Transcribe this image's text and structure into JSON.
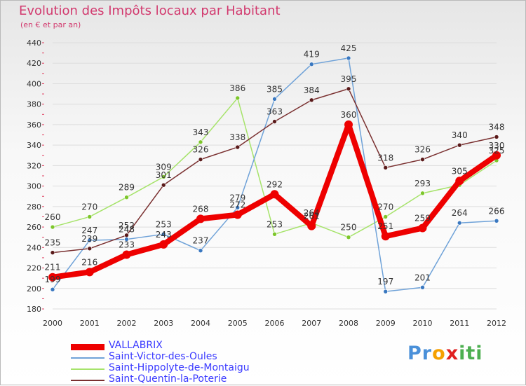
{
  "header": {
    "title": "Evolution des Impôts locaux par Habitant",
    "subtitle": "(en € et par an)"
  },
  "brand": {
    "letters": [
      "P",
      "r",
      "o",
      "x",
      "i",
      "t",
      "i"
    ]
  },
  "colors": {
    "title": "#d2396e",
    "legend_text": "#3a3aff",
    "grid": "#dddddd",
    "brand": [
      "#4a90d9",
      "#4a90d9",
      "#f5a000",
      "#e02020",
      "#4caf50",
      "#4caf50",
      "#4caf50"
    ]
  },
  "chart_data": {
    "type": "line",
    "title": "Evolution des Impôts locaux par Habitant",
    "subtitle": "(en € et par an)",
    "xlabel": "",
    "ylabel": "",
    "x": [
      2000,
      2001,
      2002,
      2003,
      2004,
      2005,
      2006,
      2007,
      2008,
      2009,
      2010,
      2011,
      2012
    ],
    "ylim": [
      180,
      440
    ],
    "yticks": [
      180,
      200,
      220,
      240,
      260,
      280,
      300,
      320,
      340,
      360,
      380,
      400,
      420,
      440
    ],
    "grid": true,
    "legend_position": "bottom-left",
    "series": [
      {
        "name": "Saint-Hippolyte-de-Montaigu",
        "color": "#a6e36a",
        "marker": "#7dc62b",
        "emphasis": false,
        "values": [
          260,
          270,
          289,
          309,
          343,
          386,
          253,
          264,
          250,
          270,
          293,
          301,
          325
        ],
        "labels": [
          "260",
          "270",
          "289",
          "309",
          "343",
          "386",
          "253",
          "264",
          "250",
          "270",
          "293",
          "",
          "325"
        ]
      },
      {
        "name": "Saint-Victor-des-Oules",
        "color": "#6fa2d8",
        "marker": "#3a78c0",
        "emphasis": false,
        "values": [
          199,
          247,
          248,
          253,
          237,
          279,
          385,
          419,
          425,
          197,
          201,
          264,
          266
        ],
        "labels": [
          "199",
          "247",
          "248",
          "253",
          "237",
          "279",
          "385",
          "419",
          "425",
          "197",
          "201",
          "264",
          "266"
        ]
      },
      {
        "name": "Saint-Quentin-la-Poterie",
        "color": "#7a3030",
        "marker": "#5a1a1a",
        "emphasis": false,
        "values": [
          235,
          239,
          252,
          301,
          326,
          338,
          363,
          384,
          395,
          318,
          326,
          340,
          348
        ],
        "labels": [
          "235",
          "239",
          "252",
          "301",
          "326",
          "338",
          "363",
          "384",
          "395",
          "318",
          "326",
          "340",
          "348"
        ]
      },
      {
        "name": "VALLABRIX",
        "color": "#ee0000",
        "marker": "#ee0000",
        "emphasis": true,
        "values": [
          211,
          216,
          233,
          243,
          268,
          272,
          292,
          261,
          360,
          251,
          259,
          305,
          330
        ],
        "labels": [
          "211",
          "216",
          "233",
          "243",
          "268",
          "272",
          "292",
          "261",
          "360",
          "251",
          "259",
          "305",
          "330"
        ]
      }
    ],
    "legend": [
      "VALLABRIX",
      "Saint-Victor-des-Oules",
      "Saint-Hippolyte-de-Montaigu",
      "Saint-Quentin-la-Poterie"
    ]
  }
}
